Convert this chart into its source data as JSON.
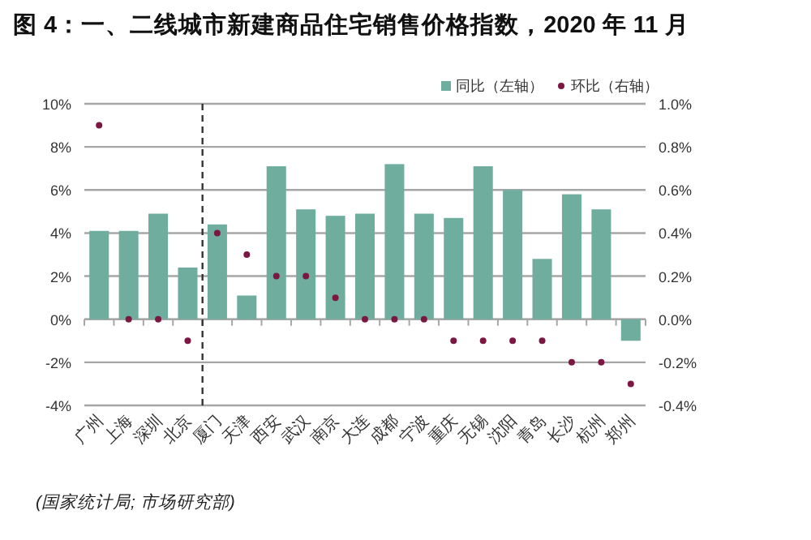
{
  "chart_data": {
    "type": "bar",
    "title": "图 4：一、二线城市新建商品住宅销售价格指数，2020 年 11 月",
    "categories": [
      "广州",
      "上海",
      "深圳",
      "北京",
      "厦门",
      "天津",
      "西安",
      "武汉",
      "南京",
      "大连",
      "成都",
      "宁波",
      "重庆",
      "无锡",
      "沈阳",
      "青岛",
      "长沙",
      "杭州",
      "郑州"
    ],
    "series": [
      {
        "name": "同比（左轴）",
        "color": "#6fae9f",
        "values": [
          4.1,
          4.1,
          4.9,
          2.4,
          4.4,
          1.1,
          7.1,
          5.1,
          4.8,
          4.9,
          7.2,
          4.9,
          4.7,
          7.1,
          6.0,
          2.8,
          5.8,
          5.1,
          -1.0
        ]
      },
      {
        "name": "环比（右轴）",
        "type": "scatter",
        "axis": "y2",
        "color": "#7a1742",
        "marker": "circle",
        "values": [
          0.9,
          0.0,
          0.0,
          -0.1,
          0.4,
          0.3,
          0.2,
          0.2,
          0.1,
          0.0,
          0.0,
          0.0,
          -0.1,
          -0.1,
          -0.1,
          -0.1,
          -0.2,
          -0.2,
          -0.3
        ]
      }
    ],
    "ylim": [
      -4,
      10
    ],
    "yticks": [
      {
        "value": -4,
        "label": "-4%"
      },
      {
        "value": -2,
        "label": "-2%"
      },
      {
        "value": 0,
        "label": "0%"
      },
      {
        "value": 2,
        "label": "2%"
      },
      {
        "value": 4,
        "label": "4%"
      },
      {
        "value": 6,
        "label": "6%"
      },
      {
        "value": 8,
        "label": "8%"
      },
      {
        "value": 10,
        "label": "10%"
      }
    ],
    "y2lim": [
      -0.4,
      1.0
    ],
    "y2ticks": [
      {
        "value": -0.4,
        "label": "-0.4%"
      },
      {
        "value": -0.2,
        "label": "-0.2%"
      },
      {
        "value": 0,
        "label": "0.0%"
      },
      {
        "value": 0.2,
        "label": "0.2%"
      },
      {
        "value": 0.4,
        "label": "0.4%"
      },
      {
        "value": 0.6,
        "label": "0.6%"
      },
      {
        "value": 0.8,
        "label": "0.8%"
      },
      {
        "value": 1.0,
        "label": "1.0%"
      }
    ],
    "grid": "y",
    "legend": "top right",
    "annotations": [
      "(国家统计局; 市场研究部)"
    ]
  }
}
